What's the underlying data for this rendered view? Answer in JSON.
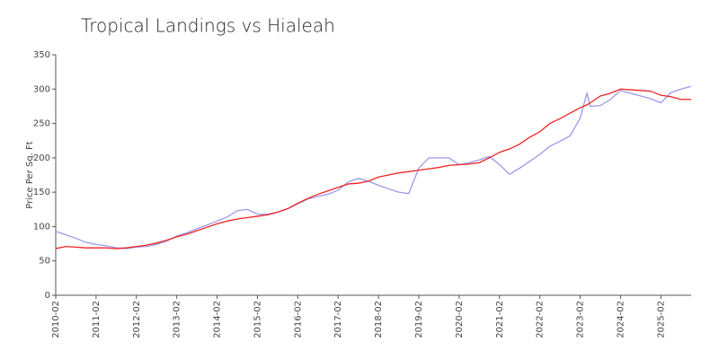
{
  "chart_data": {
    "type": "line",
    "title": "Tropical Landings vs Hialeah",
    "y_label": "Price Per Sq. Ft",
    "x": [
      "2010-02",
      "2010-05",
      "2010-08",
      "2010-11",
      "2011-02",
      "2011-05",
      "2011-08",
      "2011-11",
      "2012-02",
      "2012-05",
      "2012-08",
      "2012-11",
      "2013-02",
      "2013-05",
      "2013-08",
      "2013-11",
      "2014-02",
      "2014-05",
      "2014-08",
      "2014-11",
      "2015-02",
      "2015-05",
      "2015-08",
      "2015-11",
      "2016-02",
      "2016-05",
      "2016-08",
      "2016-11",
      "2017-02",
      "2017-05",
      "2017-08",
      "2017-11",
      "2018-02",
      "2018-05",
      "2018-08",
      "2018-11",
      "2019-02",
      "2019-05",
      "2019-08",
      "2019-11",
      "2020-02",
      "2020-05",
      "2020-08",
      "2020-11",
      "2021-02",
      "2021-05",
      "2021-08",
      "2021-11",
      "2022-02",
      "2022-05",
      "2022-08",
      "2022-11",
      "2023-02",
      "2023-04",
      "2023-05",
      "2023-08",
      "2023-11",
      "2024-02",
      "2024-05",
      "2024-08",
      "2024-11",
      "2025-02",
      "2025-05",
      "2025-08",
      "2025-11"
    ],
    "series": [
      {
        "color": "#9a9aee",
        "values": [
          93,
          88,
          83,
          77,
          74,
          72,
          69,
          68,
          70,
          71,
          74,
          79,
          86,
          91,
          97,
          102,
          108,
          114,
          123,
          125,
          118,
          118,
          121,
          126,
          133,
          140,
          144,
          147,
          153,
          165,
          170,
          166,
          160,
          155,
          150,
          148,
          185,
          200,
          200,
          200,
          190,
          193,
          197,
          202,
          190,
          176,
          185,
          195,
          205,
          217,
          224,
          232,
          258,
          294,
          275,
          276,
          285,
          298,
          294,
          290,
          286,
          280,
          295,
          300,
          304
        ]
      },
      {
        "color": "#ee2222",
        "values": [
          68,
          71,
          70,
          69,
          69,
          69,
          68,
          69,
          71,
          73,
          76,
          80,
          85,
          89,
          94,
          99,
          104,
          108,
          111,
          113,
          115,
          117,
          121,
          126,
          134,
          141,
          147,
          152,
          157,
          162,
          163,
          166,
          172,
          175,
          178,
          180,
          182,
          184,
          186,
          189,
          190,
          191,
          193,
          200,
          208,
          213,
          220,
          230,
          238,
          250,
          257,
          265,
          273,
          277,
          280,
          290,
          294,
          300,
          299,
          298,
          297,
          291,
          289,
          285,
          285
        ]
      }
    ],
    "xlim": [
      "2010-02",
      "2025-11"
    ],
    "xticks": [
      "2010-02",
      "2011-02",
      "2012-02",
      "2013-02",
      "2014-02",
      "2015-02",
      "2016-02",
      "2017-02",
      "2018-02",
      "2019-02",
      "2020-02",
      "2021-02",
      "2022-02",
      "2023-02",
      "2024-02",
      "2025-02"
    ],
    "ylim": [
      0,
      350
    ],
    "yticks": [
      0,
      50,
      100,
      150,
      200,
      250,
      300,
      350
    ],
    "grid": false
  }
}
